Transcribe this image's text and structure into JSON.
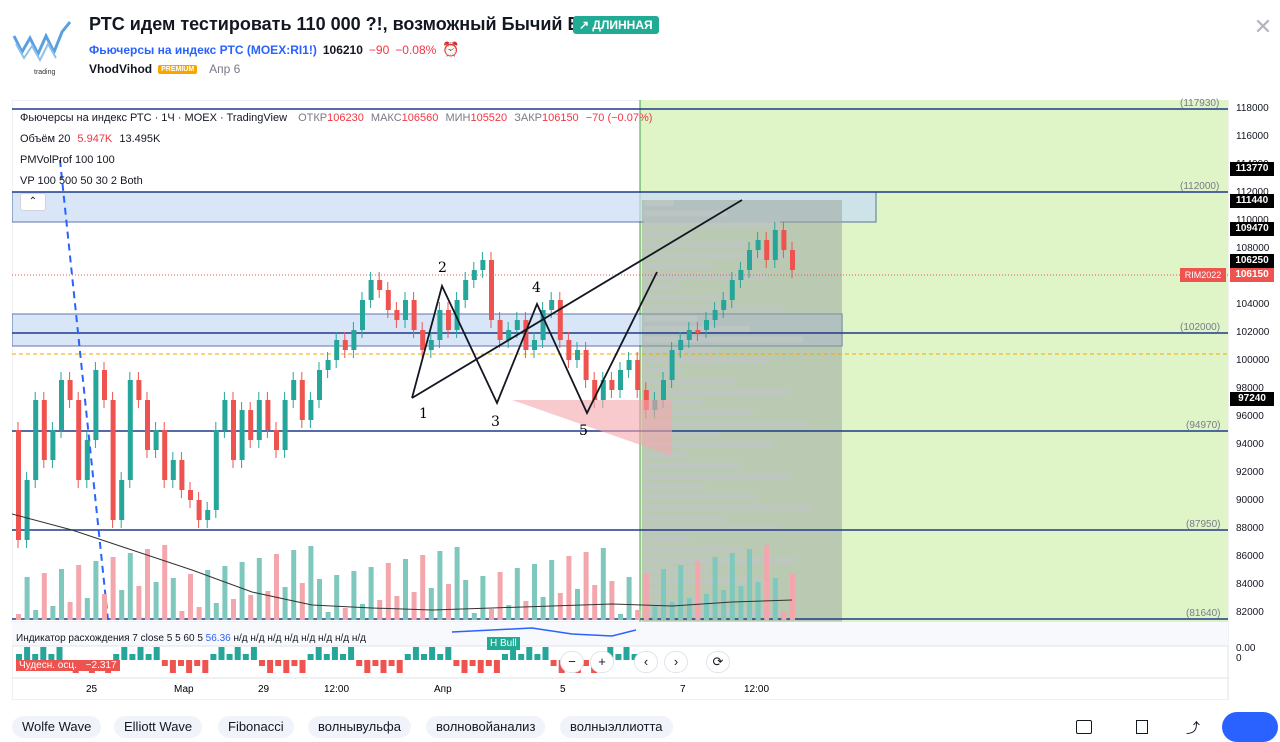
{
  "idea": {
    "title": "РТС идем тестировать 110 000 ?!, возможный Бычий Вульф",
    "badge": "↗ ДЛИННАЯ",
    "symbol_name": "Фьючерсы на индекс РТС",
    "symbol_code": "(MOEX:RI1!)",
    "price": "106210",
    "change": "−90",
    "change_pct": "−0.08%",
    "author": "VhodVihod",
    "author_badge": "PREMIUM",
    "date": "Апр 6",
    "logo_text": "trading"
  },
  "legend": {
    "title": "Фьючерсы на индекс РТС · 1Ч · MOEX · TradingView",
    "open_label": "ОТКР",
    "open": "106230",
    "high_label": "МАКС",
    "high": "106560",
    "low_label": "МИН",
    "low": "105520",
    "close_label": "ЗАКР",
    "close": "106150",
    "chg": "−70 (−0.07%)",
    "volume_label": "Объём 20",
    "volume_1": "5.947K",
    "volume_2": "13.495K",
    "pm": "PMVolProf 100 100",
    "vp": "VP 100 500 50 30 2 Both"
  },
  "indicators": {
    "div_label": "Индикатор расхождения 7 close 5 5 60 5",
    "div_value": "56.36",
    "div_na": "н/д н/д н/д н/д н/д н/д н/д н/д",
    "hbull": "H Bull",
    "ao_label": "Чудесн. осц.",
    "ao_value": "−2.317"
  },
  "price_axis": {
    "ticks": [
      "118000",
      "116000",
      "114000",
      "112000",
      "110000",
      "108000",
      "106000",
      "104000",
      "102000",
      "100000",
      "98000",
      "96000",
      "94000",
      "92000",
      "90000",
      "88000",
      "86000",
      "84000",
      "82000"
    ],
    "labels_sub": [
      "0.00",
      "0"
    ],
    "pill_113770": "113770",
    "pill_111440": "111440",
    "pill_109470": "109470",
    "pill_106250": "106250",
    "pill_106150": "106150",
    "pill_97240": "97240",
    "symbol_tag": "RIM2022"
  },
  "levels": {
    "l117": "(117930)",
    "l112": "(112000)",
    "l102": "(102000)",
    "l9497": "(94970)",
    "l8795": "(87950)",
    "l8164": "(81640)"
  },
  "time_axis": [
    "25",
    "Мар",
    "29",
    "12:00",
    "Апр",
    "5",
    "7",
    "12:00"
  ],
  "wave_points": [
    "1",
    "2",
    "3",
    "4",
    "5"
  ],
  "controls": {
    "minus": "−",
    "plus": "+",
    "left": "‹",
    "right": "›",
    "reset": "⟳",
    "collapse": "⌃"
  },
  "tags": [
    "Wolfe Wave",
    "Elliott Wave",
    "Fibonacci",
    "волнывульфа",
    "волновойанализ",
    "волныэллиотта"
  ],
  "colors": {
    "up": "#26a69a",
    "down": "#ef5350",
    "level": "#1e3a8a",
    "future": "#dff5c8",
    "accent": "#2962ff"
  }
}
